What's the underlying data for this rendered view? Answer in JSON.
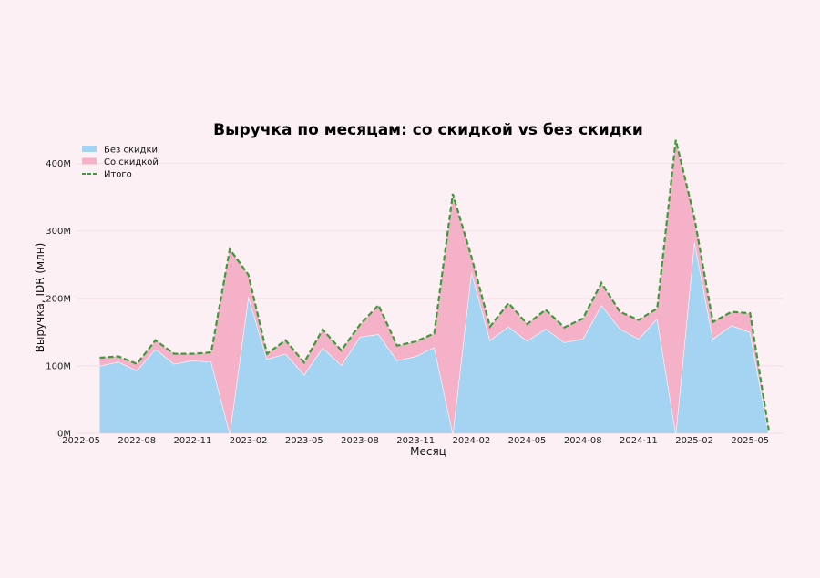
{
  "chart_data": {
    "type": "area",
    "title": "Выручка по месяцам: со скидкой vs без скидки",
    "xlabel": "Месяц",
    "ylabel": "Выручка, IDR (млн)",
    "ylim": [
      0,
      440
    ],
    "y_ticks": [
      0,
      100,
      200,
      300,
      400
    ],
    "y_tick_labels": [
      "0M",
      "100M",
      "200M",
      "300M",
      "400M"
    ],
    "x_ticks": [
      "2022-05",
      "2022-08",
      "2022-11",
      "2023-02",
      "2023-05",
      "2023-08",
      "2023-11",
      "2024-02",
      "2024-05",
      "2024-08",
      "2024-11",
      "2025-02",
      "2025-05"
    ],
    "x": [
      "2022-06",
      "2022-07",
      "2022-08",
      "2022-09",
      "2022-10",
      "2022-11",
      "2022-12",
      "2023-01",
      "2023-02",
      "2023-03",
      "2023-04",
      "2023-05",
      "2023-06",
      "2023-07",
      "2023-08",
      "2023-09",
      "2023-10",
      "2023-11",
      "2023-12",
      "2024-01",
      "2024-02",
      "2024-03",
      "2024-04",
      "2024-05",
      "2024-06",
      "2024-07",
      "2024-08",
      "2024-09",
      "2024-10",
      "2024-11",
      "2024-12",
      "2025-01",
      "2025-02",
      "2025-03",
      "2025-04",
      "2025-05",
      "2025-06"
    ],
    "series": [
      {
        "name": "Без скидки",
        "color": "#a5d4f3",
        "values": [
          100,
          106,
          93,
          125,
          103,
          108,
          106,
          0,
          203,
          110,
          118,
          87,
          127,
          101,
          143,
          147,
          108,
          114,
          128,
          0,
          240,
          138,
          158,
          137,
          155,
          135,
          140,
          190,
          155,
          140,
          170,
          0,
          285,
          140,
          160,
          150,
          0
        ]
      },
      {
        "name": "Со скидкой",
        "color": "#f5b1c8",
        "values": [
          12,
          8,
          10,
          13,
          15,
          10,
          14,
          273,
          32,
          8,
          20,
          18,
          27,
          22,
          18,
          43,
          22,
          22,
          20,
          355,
          22,
          20,
          35,
          25,
          28,
          22,
          30,
          33,
          25,
          28,
          15,
          435,
          35,
          25,
          20,
          28,
          5
        ]
      }
    ],
    "total": {
      "name": "Итого",
      "color": "#3e9a3a",
      "style": "dashed",
      "values": [
        112,
        114,
        103,
        138,
        118,
        118,
        120,
        273,
        235,
        118,
        138,
        105,
        154,
        123,
        161,
        190,
        130,
        136,
        148,
        355,
        262,
        158,
        193,
        162,
        183,
        157,
        170,
        223,
        180,
        168,
        185,
        435,
        320,
        165,
        180,
        178,
        5
      ]
    },
    "grid": true,
    "legend_position": "top-left"
  }
}
